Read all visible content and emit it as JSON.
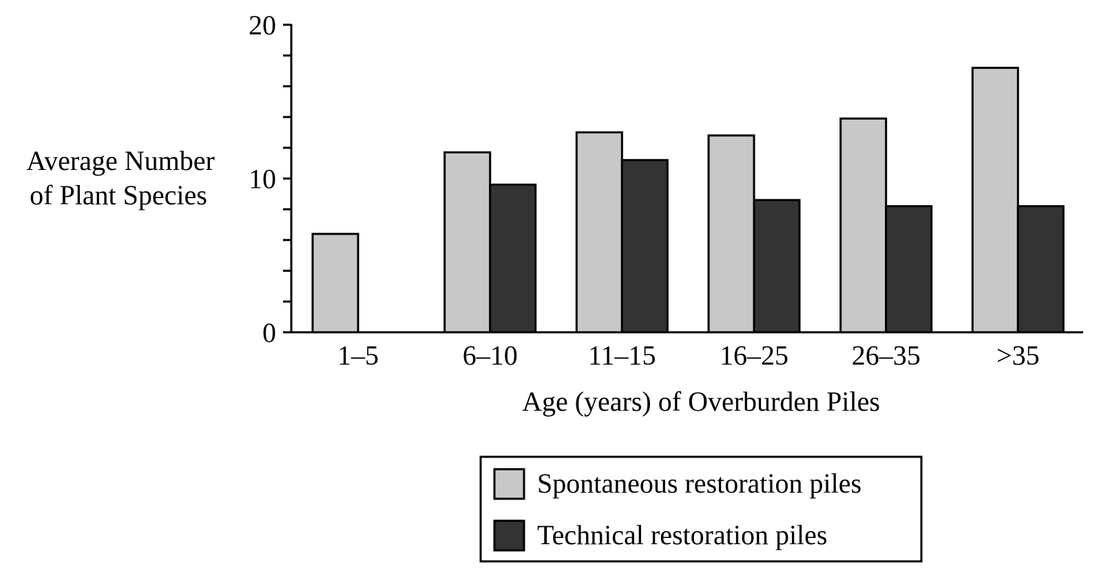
{
  "chart_data": {
    "type": "bar",
    "title": "",
    "xlabel": "Age (years) of Overburden Piles",
    "ylabel_lines": [
      "Average Number",
      "of Plant Species"
    ],
    "categories": [
      "1–5",
      "6–10",
      "11–15",
      "16–25",
      "26–35",
      ">35"
    ],
    "ylim": [
      0,
      20
    ],
    "y_major_ticks": [
      0,
      10,
      20
    ],
    "y_minor_step": 2,
    "grid": false,
    "legend_position": "bottom-right",
    "series": [
      {
        "name": "Spontaneous restoration piles",
        "color": "#c8c8c8",
        "values": [
          6.4,
          11.7,
          13.0,
          12.8,
          13.9,
          17.2
        ]
      },
      {
        "name": "Technical restoration piles",
        "color": "#333333",
        "values": [
          null,
          9.6,
          11.2,
          8.6,
          8.2,
          8.2
        ]
      }
    ]
  }
}
